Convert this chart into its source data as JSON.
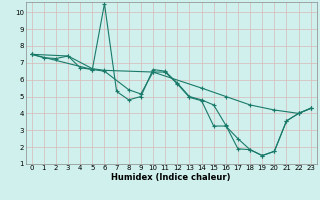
{
  "title": "",
  "xlabel": "Humidex (Indice chaleur)",
  "ylabel": "",
  "background_color": "#cff0ec",
  "grid_color": "#b8ddd8",
  "line_color": "#1a7a6a",
  "xlim": [
    -0.5,
    23.5
  ],
  "ylim": [
    1,
    10.6
  ],
  "xticks": [
    0,
    1,
    2,
    3,
    4,
    5,
    6,
    7,
    8,
    9,
    10,
    11,
    12,
    13,
    14,
    15,
    16,
    17,
    18,
    19,
    20,
    21,
    22,
    23
  ],
  "yticks": [
    1,
    2,
    3,
    4,
    5,
    6,
    7,
    8,
    9,
    10
  ],
  "series1": [
    [
      0,
      7.5
    ],
    [
      1,
      7.3
    ],
    [
      2,
      7.25
    ],
    [
      3,
      7.4
    ],
    [
      4,
      6.7
    ],
    [
      5,
      6.6
    ],
    [
      6,
      10.5
    ],
    [
      7,
      5.3
    ],
    [
      8,
      4.8
    ],
    [
      9,
      5.0
    ],
    [
      10,
      6.6
    ],
    [
      11,
      6.5
    ],
    [
      12,
      5.8
    ],
    [
      13,
      5.0
    ],
    [
      14,
      4.8
    ],
    [
      15,
      4.5
    ],
    [
      16,
      3.3
    ],
    [
      17,
      1.9
    ],
    [
      18,
      1.85
    ],
    [
      19,
      1.5
    ],
    [
      20,
      1.75
    ],
    [
      21,
      3.55
    ],
    [
      22,
      4.0
    ],
    [
      23,
      4.3
    ]
  ],
  "series2": [
    [
      0,
      7.5
    ],
    [
      3,
      7.4
    ],
    [
      5,
      6.65
    ],
    [
      6,
      6.55
    ],
    [
      10,
      6.45
    ],
    [
      14,
      5.5
    ],
    [
      16,
      5.0
    ],
    [
      18,
      4.5
    ],
    [
      20,
      4.2
    ],
    [
      22,
      4.0
    ],
    [
      23,
      4.3
    ]
  ],
  "series3": [
    [
      0,
      7.5
    ],
    [
      5,
      6.6
    ],
    [
      6,
      6.5
    ],
    [
      8,
      5.4
    ],
    [
      9,
      5.15
    ],
    [
      10,
      6.45
    ],
    [
      11,
      6.45
    ],
    [
      12,
      5.75
    ],
    [
      13,
      4.95
    ],
    [
      14,
      4.75
    ],
    [
      15,
      3.25
    ],
    [
      16,
      3.25
    ],
    [
      17,
      2.5
    ],
    [
      18,
      1.85
    ],
    [
      19,
      1.5
    ],
    [
      20,
      1.75
    ],
    [
      21,
      3.55
    ],
    [
      22,
      4.0
    ],
    [
      23,
      4.3
    ]
  ]
}
